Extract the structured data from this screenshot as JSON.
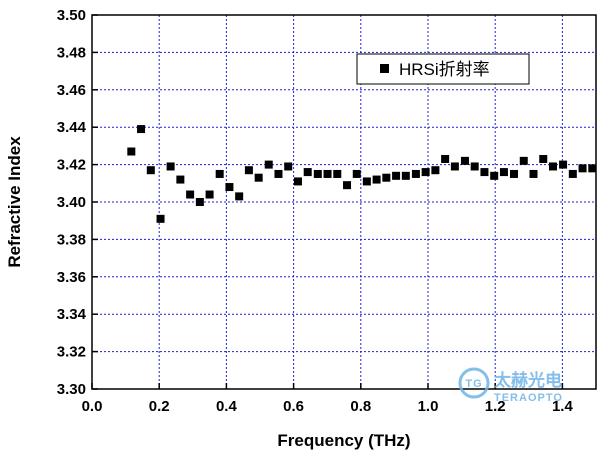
{
  "chart_data": {
    "type": "scatter",
    "xlabel": "Frequency (THz)",
    "ylabel": "Refractive Index",
    "xlim": [
      0.0,
      1.5
    ],
    "ylim": [
      3.3,
      3.5
    ],
    "x_ticks": [
      "0.0",
      "0.2",
      "0.4",
      "0.6",
      "0.8",
      "1.0",
      "1.2",
      "1.4"
    ],
    "y_ticks": [
      "3.30",
      "3.32",
      "3.34",
      "3.36",
      "3.38",
      "3.40",
      "3.42",
      "3.44",
      "3.46",
      "3.48",
      "3.50"
    ],
    "grid": true,
    "legend_position": "top-right",
    "series": [
      {
        "name": "HRSi折射率",
        "marker": "square",
        "color": "#000000",
        "points": [
          [
            0.117,
            3.427
          ],
          [
            0.146,
            3.439
          ],
          [
            0.175,
            3.417
          ],
          [
            0.204,
            3.391
          ],
          [
            0.234,
            3.419
          ],
          [
            0.263,
            3.412
          ],
          [
            0.292,
            3.404
          ],
          [
            0.321,
            3.4
          ],
          [
            0.35,
            3.404
          ],
          [
            0.38,
            3.415
          ],
          [
            0.409,
            3.408
          ],
          [
            0.438,
            3.403
          ],
          [
            0.467,
            3.417
          ],
          [
            0.496,
            3.413
          ],
          [
            0.526,
            3.42
          ],
          [
            0.555,
            3.415
          ],
          [
            0.584,
            3.419
          ],
          [
            0.613,
            3.411
          ],
          [
            0.642,
            3.416
          ],
          [
            0.672,
            3.415
          ],
          [
            0.701,
            3.415
          ],
          [
            0.73,
            3.415
          ],
          [
            0.759,
            3.409
          ],
          [
            0.788,
            3.415
          ],
          [
            0.818,
            3.411
          ],
          [
            0.847,
            3.412
          ],
          [
            0.876,
            3.413
          ],
          [
            0.905,
            3.414
          ],
          [
            0.934,
            3.414
          ],
          [
            0.964,
            3.415
          ],
          [
            0.993,
            3.416
          ],
          [
            1.022,
            3.417
          ],
          [
            1.051,
            3.423
          ],
          [
            1.08,
            3.419
          ],
          [
            1.11,
            3.422
          ],
          [
            1.139,
            3.419
          ],
          [
            1.168,
            3.416
          ],
          [
            1.197,
            3.414
          ],
          [
            1.226,
            3.416
          ],
          [
            1.256,
            3.415
          ],
          [
            1.285,
            3.422
          ],
          [
            1.314,
            3.415
          ],
          [
            1.343,
            3.423
          ],
          [
            1.372,
            3.419
          ],
          [
            1.402,
            3.42
          ],
          [
            1.431,
            3.415
          ],
          [
            1.46,
            3.418
          ],
          [
            1.489,
            3.418
          ]
        ]
      }
    ]
  },
  "watermark": {
    "logo_text": "TG",
    "brand_cn": "太赫光电",
    "brand_en": "TERAOPTO",
    "color": "#6fb3e6"
  }
}
